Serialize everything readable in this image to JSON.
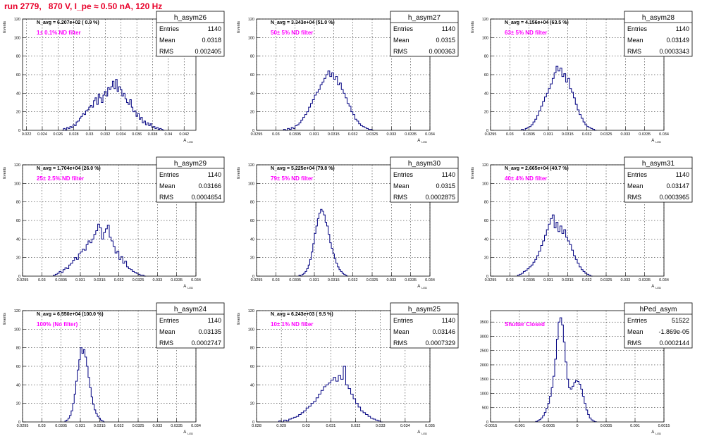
{
  "title": "run 2779,   870 V, I_pe ≈ 0.50 nA, 120 Hz",
  "colors": {
    "hist": "#000080",
    "grid": "#000000",
    "annotation": "#ff00ff",
    "title": "#e8002a",
    "stats_bg": "#ffffff"
  },
  "chart_data": [
    {
      "type": "bar",
      "name": "h_asym26",
      "nav": "N_avg = 6.207e+02 ( 0.9 %)",
      "label": "1± 0.1% ND filter",
      "xlabel": "A_LED",
      "ylabel": "Events",
      "stats": {
        "entries": "1140",
        "mean": "0.0318",
        "rms": "0.002405"
      },
      "xlim": [
        0.0215,
        0.0435
      ],
      "ylim": [
        0,
        120
      ],
      "xticks": [
        0.022,
        0.024,
        0.026,
        0.028,
        0.03,
        0.032,
        0.034,
        0.036,
        0.038,
        0.04,
        0.042
      ],
      "xtick_labels": [
        "0.022",
        "0.024",
        "0.026",
        "0.028",
        "0.03",
        "0.032",
        "0.034",
        "0.036",
        "0.038",
        "0.04",
        "0.042"
      ],
      "bin_start": 0.0265,
      "bin_width": 0.0002,
      "values": [
        0,
        2,
        0,
        3,
        2,
        4,
        3,
        6,
        5,
        9,
        10,
        13,
        15,
        18,
        17,
        21,
        22,
        25,
        27,
        25,
        32,
        35,
        28,
        39,
        35,
        30,
        38,
        42,
        37,
        46,
        44,
        47,
        53,
        45,
        55,
        42,
        47,
        44,
        37,
        40,
        34,
        30,
        28,
        33,
        25,
        20,
        21,
        15,
        18,
        12,
        14,
        8,
        10,
        6,
        8,
        5,
        7,
        3,
        4,
        2,
        3,
        1,
        2,
        1,
        0
      ]
    },
    {
      "type": "bar",
      "name": "h_asym27",
      "nav": "N_avg = 3.343e+04 (51.0 %)",
      "label": "50± 5% ND filter",
      "xlabel": "A_LED",
      "ylabel": "Events",
      "stats": {
        "entries": "1140",
        "mean": "0.0315",
        "rms": "0.000363"
      },
      "xlim": [
        0.0295,
        0.034
      ],
      "ylim": [
        0,
        120
      ],
      "xticks": [
        0.0295,
        0.03,
        0.0305,
        0.031,
        0.0315,
        0.032,
        0.0325,
        0.033,
        0.0335,
        0.034
      ],
      "xtick_labels": [
        "0.0295",
        "0.03",
        "0.0305",
        "0.031",
        "0.0315",
        "0.032",
        "0.0325",
        "0.033",
        "0.0335",
        "0.034"
      ],
      "bin_start": 0.0302,
      "bin_width": 5e-05,
      "values": [
        1,
        0,
        2,
        1,
        3,
        2,
        5,
        6,
        8,
        11,
        14,
        17,
        20,
        25,
        29,
        33,
        38,
        41,
        44,
        49,
        52,
        56,
        60,
        64,
        58,
        62,
        55,
        58,
        49,
        51,
        44,
        40,
        35,
        29,
        26,
        20,
        17,
        12,
        10,
        7,
        5,
        4,
        3,
        2,
        1,
        1,
        0
      ]
    },
    {
      "type": "bar",
      "name": "h_asym28",
      "nav": "N_avg = 4.156e+04 (63.5 %)",
      "label": "63± 5% ND filter",
      "xlabel": "A_LED",
      "ylabel": "Events",
      "stats": {
        "entries": "1140",
        "mean": "0.03149",
        "rms": "0.0003343"
      },
      "xlim": [
        0.0295,
        0.034
      ],
      "ylim": [
        0,
        120
      ],
      "xticks": [
        0.0295,
        0.03,
        0.0305,
        0.031,
        0.0315,
        0.032,
        0.0325,
        0.033,
        0.0335,
        0.034
      ],
      "xtick_labels": [
        "0.0295",
        "0.03",
        "0.0305",
        "0.031",
        "0.0315",
        "0.032",
        "0.0325",
        "0.033",
        "0.0335",
        "0.034"
      ],
      "bin_start": 0.0303,
      "bin_width": 5e-05,
      "values": [
        1,
        0,
        2,
        3,
        4,
        6,
        9,
        12,
        16,
        21,
        26,
        31,
        36,
        40,
        45,
        50,
        56,
        62,
        69,
        64,
        67,
        58,
        61,
        52,
        56,
        45,
        41,
        35,
        28,
        22,
        17,
        13,
        9,
        6,
        4,
        3,
        2,
        1,
        0
      ]
    },
    {
      "type": "bar",
      "name": "h_asym29",
      "nav": "N_avg = 1.704e+04 (26.0 %)",
      "label": "25± 2.5% ND filter",
      "xlabel": "A_LED",
      "ylabel": "Events",
      "stats": {
        "entries": "1140",
        "mean": "0.03166",
        "rms": "0.0004654"
      },
      "xlim": [
        0.0295,
        0.034
      ],
      "ylim": [
        0,
        120
      ],
      "xticks": [
        0.0295,
        0.03,
        0.0305,
        0.031,
        0.0315,
        0.032,
        0.0325,
        0.033,
        0.0335,
        0.034
      ],
      "xtick_labels": [
        "0.0295",
        "0.03",
        "0.0305",
        "0.031",
        "0.0315",
        "0.032",
        "0.0325",
        "0.033",
        "0.0335",
        "0.034"
      ],
      "bin_start": 0.0303,
      "bin_width": 5e-05,
      "values": [
        1,
        2,
        3,
        5,
        4,
        7,
        9,
        8,
        12,
        14,
        17,
        20,
        18,
        24,
        26,
        29,
        28,
        34,
        38,
        36,
        40,
        45,
        49,
        56,
        52,
        40,
        47,
        51,
        55,
        42,
        38,
        32,
        25,
        27,
        18,
        21,
        14,
        16,
        10,
        8,
        7,
        5,
        4,
        3,
        2,
        1,
        1,
        0
      ]
    },
    {
      "type": "bar",
      "name": "h_asym30",
      "nav": "N_avg = 5.225e+04 (79.8 %)",
      "label": "79± 5% ND filter",
      "xlabel": "A_LED",
      "ylabel": "Events",
      "stats": {
        "entries": "1140",
        "mean": "0.0315",
        "rms": "0.0002875"
      },
      "xlim": [
        0.0295,
        0.034
      ],
      "ylim": [
        0,
        120
      ],
      "xticks": [
        0.0295,
        0.03,
        0.0305,
        0.031,
        0.0315,
        0.032,
        0.0325,
        0.033,
        0.0335,
        0.034
      ],
      "xtick_labels": [
        "0.0295",
        "0.03",
        "0.0305",
        "0.031",
        "0.0315",
        "0.032",
        "0.0325",
        "0.033",
        "0.0335",
        "0.034"
      ],
      "bin_start": 0.0306,
      "bin_width": 4e-05,
      "values": [
        1,
        0,
        2,
        3,
        5,
        8,
        12,
        18,
        26,
        35,
        46,
        54,
        62,
        68,
        72,
        70,
        66,
        58,
        54,
        45,
        36,
        30,
        24,
        19,
        14,
        10,
        7,
        5,
        3,
        2,
        1,
        0
      ]
    },
    {
      "type": "bar",
      "name": "h_asym31",
      "nav": "N_avg = 2.665e+04 (40.7 %)",
      "label": "40± 4% ND filter",
      "xlabel": "A_LED",
      "ylabel": "Events",
      "stats": {
        "entries": "1140",
        "mean": "0.03147",
        "rms": "0.0003965"
      },
      "xlim": [
        0.0295,
        0.034
      ],
      "ylim": [
        0,
        120
      ],
      "xticks": [
        0.0295,
        0.03,
        0.0305,
        0.031,
        0.0315,
        0.032,
        0.0325,
        0.033,
        0.0335,
        0.034
      ],
      "xtick_labels": [
        "0.0295",
        "0.03",
        "0.0305",
        "0.031",
        "0.0315",
        "0.032",
        "0.0325",
        "0.033",
        "0.0335",
        "0.034"
      ],
      "bin_start": 0.0302,
      "bin_width": 5e-05,
      "values": [
        1,
        2,
        3,
        5,
        6,
        8,
        10,
        12,
        15,
        18,
        22,
        27,
        33,
        38,
        44,
        50,
        56,
        62,
        66,
        52,
        58,
        48,
        54,
        46,
        50,
        42,
        38,
        34,
        28,
        22,
        18,
        14,
        10,
        7,
        5,
        3,
        2,
        1,
        0
      ]
    },
    {
      "type": "bar",
      "name": "h_asym24",
      "nav": "N_avg = 6.550e+04 (100.0 %)",
      "label": "100% (No filter)",
      "xlabel": "A_LED",
      "ylabel": "Events",
      "stats": {
        "entries": "1140",
        "mean": "0.03135",
        "rms": "0.0002747"
      },
      "xlim": [
        0.0295,
        0.034
      ],
      "ylim": [
        0,
        120
      ],
      "xticks": [
        0.0295,
        0.03,
        0.0305,
        0.031,
        0.0315,
        0.032,
        0.0325,
        0.033,
        0.0335,
        0.034
      ],
      "xtick_labels": [
        "0.0295",
        "0.03",
        "0.0305",
        "0.031",
        "0.0315",
        "0.032",
        "0.0325",
        "0.033",
        "0.0335",
        "0.034"
      ],
      "bin_start": 0.0306,
      "bin_width": 4e-05,
      "values": [
        1,
        2,
        4,
        7,
        12,
        20,
        30,
        44,
        56,
        67,
        80,
        74,
        78,
        70,
        60,
        48,
        37,
        27,
        19,
        13,
        9,
        6,
        4,
        2,
        1,
        0
      ]
    },
    {
      "type": "bar",
      "name": "h_asym25",
      "nav": "N_avg = 6.243e+03 ( 9.5 %)",
      "label": "10± 1% ND filter",
      "xlabel": "A_LED",
      "ylabel": "Events",
      "stats": {
        "entries": "1140",
        "mean": "0.03146",
        "rms": "0.0007329"
      },
      "xlim": [
        0.028,
        0.035
      ],
      "ylim": [
        0,
        120
      ],
      "xticks": [
        0.028,
        0.029,
        0.03,
        0.031,
        0.032,
        0.033,
        0.034,
        0.035
      ],
      "xtick_labels": [
        "0.028",
        "0.029",
        "0.03",
        "0.031",
        "0.032",
        "0.033",
        "0.034",
        "0.035"
      ],
      "bin_start": 0.0289,
      "bin_width": 0.0001,
      "values": [
        1,
        0,
        2,
        1,
        3,
        4,
        5,
        6,
        8,
        10,
        12,
        15,
        17,
        20,
        22,
        26,
        30,
        34,
        38,
        40,
        42,
        45,
        48,
        44,
        50,
        46,
        60,
        40,
        36,
        30,
        25,
        20,
        16,
        12,
        10,
        8,
        6,
        4,
        3,
        2,
        1,
        0
      ]
    },
    {
      "type": "bar",
      "name": "hPed_asym",
      "nav": "",
      "label": "Shutter Closed",
      "xlabel": "A_LED",
      "ylabel": "",
      "stats": {
        "entries": "51522",
        "mean": "-1.869e-05",
        "rms": "0.0002144"
      },
      "xlim": [
        -0.0015,
        0.0015
      ],
      "ylim": [
        0,
        3900
      ],
      "yticks": [
        0,
        500,
        1000,
        1500,
        2000,
        2500,
        3000,
        3500
      ],
      "xticks": [
        -0.0015,
        -0.001,
        -0.0005,
        0,
        0.0005,
        0.001,
        0.0015
      ],
      "xtick_labels": [
        "-0.0015",
        "-0.001",
        "-0.0005",
        "0",
        "0.0005",
        "0.001",
        "0.0015"
      ],
      "bin_start": -0.00072,
      "bin_width": 3e-05,
      "values": [
        20,
        40,
        80,
        140,
        220,
        330,
        480,
        650,
        900,
        1200,
        1600,
        2200,
        2900,
        3500,
        3650,
        3400,
        2800,
        2100,
        1500,
        1200,
        1150,
        1250,
        1380,
        1450,
        1420,
        1320,
        1150,
        900,
        650,
        420,
        260,
        140,
        70,
        30,
        10
      ]
    }
  ]
}
